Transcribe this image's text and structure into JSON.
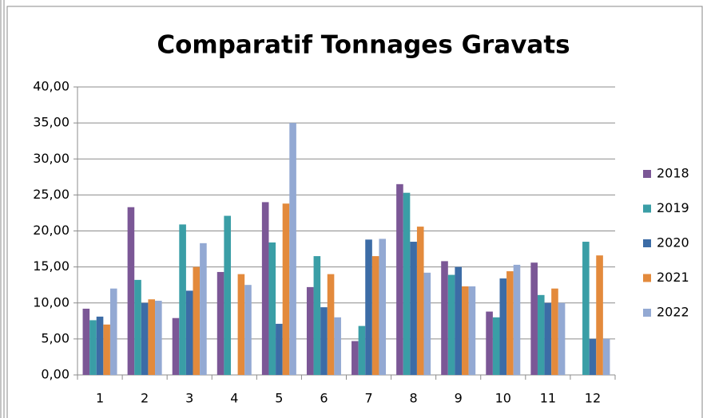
{
  "chart_data": {
    "type": "bar",
    "title": "Comparatif Tonnages Gravats",
    "categories": [
      "1",
      "2",
      "3",
      "4",
      "5",
      "6",
      "7",
      "8",
      "9",
      "10",
      "11",
      "12"
    ],
    "series": [
      {
        "name": "2018",
        "color": "#7b5796",
        "values": [
          9.2,
          23.3,
          7.9,
          14.3,
          24.0,
          12.2,
          4.7,
          26.5,
          15.8,
          8.8,
          15.6,
          null
        ]
      },
      {
        "name": "2019",
        "color": "#3a9ea6",
        "values": [
          7.6,
          13.2,
          20.9,
          22.1,
          18.4,
          16.5,
          6.8,
          25.3,
          13.9,
          8.0,
          11.1,
          18.5
        ]
      },
      {
        "name": "2020",
        "color": "#3c6ca6",
        "values": [
          8.1,
          10.0,
          11.7,
          null,
          7.1,
          9.4,
          18.8,
          18.5,
          15.0,
          13.4,
          10.0,
          5.0
        ]
      },
      {
        "name": "2021",
        "color": "#e38a3c",
        "values": [
          7.0,
          10.5,
          15.0,
          14.0,
          23.8,
          14.0,
          16.5,
          20.6,
          12.3,
          14.4,
          12.0,
          16.6
        ]
      },
      {
        "name": "2022",
        "color": "#93a9d3",
        "values": [
          12.0,
          10.3,
          18.3,
          12.5,
          35.0,
          8.0,
          18.9,
          14.2,
          12.3,
          15.3,
          10.0,
          5.0
        ]
      }
    ],
    "ylim": [
      0,
      40
    ],
    "yticks": [
      {
        "value": 0,
        "label": "0,00"
      },
      {
        "value": 5,
        "label": "5,00"
      },
      {
        "value": 10,
        "label": "10,00"
      },
      {
        "value": 15,
        "label": "15,00"
      },
      {
        "value": 20,
        "label": "20,00"
      },
      {
        "value": 25,
        "label": "25,00"
      },
      {
        "value": 30,
        "label": "30,00"
      },
      {
        "value": 35,
        "label": "35,00"
      },
      {
        "value": 40,
        "label": "40,00"
      }
    ],
    "grid": true,
    "legend": "right"
  }
}
